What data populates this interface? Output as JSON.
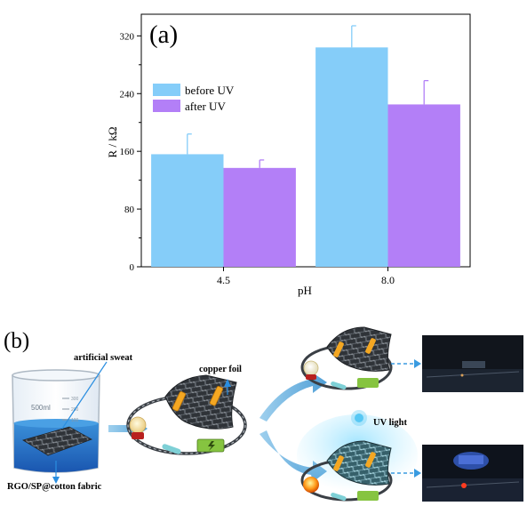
{
  "panel_a_label": "(a)",
  "panel_b_label": "(b)",
  "chart_data": {
    "type": "bar",
    "categories": [
      "4.5",
      "8.0"
    ],
    "series": [
      {
        "name": "before UV",
        "values": [
          156,
          304
        ],
        "errors": [
          28,
          30
        ],
        "color": "#85cdf9"
      },
      {
        "name": "after UV",
        "values": [
          137,
          225
        ],
        "errors": [
          11,
          33
        ],
        "color": "#b37ff7"
      }
    ],
    "xlabel": "pH",
    "ylabel": "R / kΩ",
    "ylim": [
      0,
      350
    ],
    "yticks": [
      0,
      80,
      160,
      240,
      320
    ],
    "legend_position": "upper-left",
    "grid": false
  },
  "diagram": {
    "beaker_volume": "500ml",
    "beaker_marks": [
      "300",
      "200",
      "100"
    ],
    "label_artificial_sweat": "artificial sweat",
    "label_fabric": "RGO/SP@cotton fabric",
    "label_copper_foil": "copper foil",
    "label_uv_light": "UV light"
  }
}
